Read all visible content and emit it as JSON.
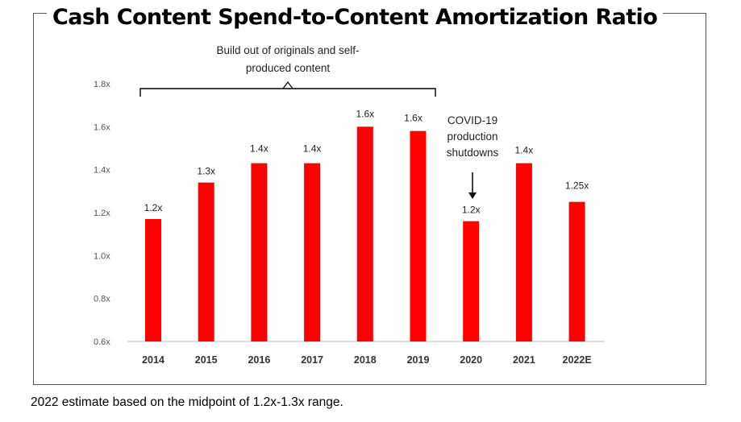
{
  "chart_data": {
    "type": "bar",
    "title": "Cash Content Spend-to-Content Amortization Ratio",
    "categories": [
      "2014",
      "2015",
      "2016",
      "2017",
      "2018",
      "2019",
      "2020",
      "2021",
      "2022E"
    ],
    "values": [
      1.17,
      1.34,
      1.43,
      1.43,
      1.6,
      1.58,
      1.16,
      1.43,
      1.25
    ],
    "data_labels": [
      "1.2x",
      "1.3x",
      "1.4x",
      "1.4x",
      "1.6x",
      "1.6x",
      "1.2x",
      "1.4x",
      "1.25x"
    ],
    "ylim": [
      0.6,
      1.8
    ],
    "yticks": [
      1.8,
      1.6,
      1.4,
      1.2,
      1.0,
      0.8,
      0.6
    ],
    "ytick_labels": [
      "1.8x",
      "1.6x",
      "1.4x",
      "1.2x",
      "1.0x",
      "0.8x",
      "0.6x"
    ],
    "xlabel": "",
    "ylabel": "",
    "grid": false,
    "bar_color": "#ff0000",
    "annotations": {
      "bracket_text": [
        "Build out of originals and self-",
        "produced content"
      ],
      "bracket_span": [
        "2014",
        "2019"
      ],
      "covid_text": [
        "COVID-19",
        "production",
        "shutdowns"
      ],
      "covid_target": "2020"
    }
  },
  "footnote": "2022 estimate based on the midpoint of 1.2x-1.3x range."
}
